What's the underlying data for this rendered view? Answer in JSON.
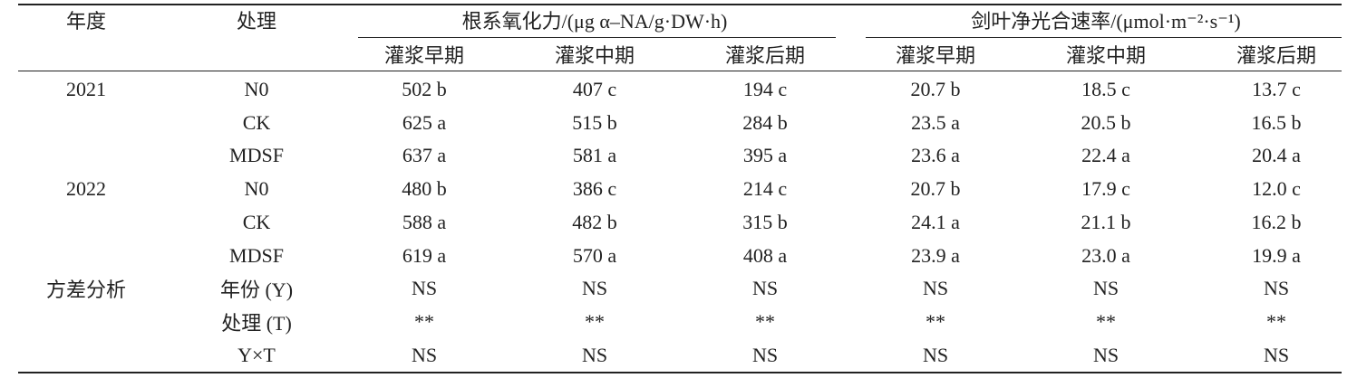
{
  "header": {
    "year": "年度",
    "treatment": "处理",
    "groups": [
      {
        "title": "根系氧化力/(μg α–NA/g·DW·h)",
        "columns": [
          "灌浆早期",
          "灌浆中期",
          "灌浆后期"
        ]
      },
      {
        "title": "剑叶净光合速率/(μmol·m⁻²·s⁻¹)",
        "columns": [
          "灌浆早期",
          "灌浆中期",
          "灌浆后期"
        ]
      }
    ]
  },
  "rows": [
    {
      "year": "2021",
      "treatment": "N0",
      "values": [
        "502 b",
        "407 c",
        "194 c",
        "20.7 b",
        "18.5 c",
        "13.7 c"
      ]
    },
    {
      "treatment": "CK",
      "values": [
        "625 a",
        "515 b",
        "284 b",
        "23.5 a",
        "20.5 b",
        "16.5 b"
      ]
    },
    {
      "treatment": "MDSF",
      "values": [
        "637 a",
        "581 a",
        "395 a",
        "23.6 a",
        "22.4 a",
        "20.4 a"
      ]
    },
    {
      "year": "2022",
      "treatment": "N0",
      "values": [
        "480 b",
        "386 c",
        "214 c",
        "20.7 b",
        "17.9 c",
        "12.0 c"
      ]
    },
    {
      "treatment": "CK",
      "values": [
        "588 a",
        "482 b",
        "315 b",
        "24.1 a",
        "21.1 b",
        "16.2 b"
      ]
    },
    {
      "treatment": "MDSF",
      "values": [
        "619 a",
        "570 a",
        "408 a",
        "23.9 a",
        "23.0 a",
        "19.9 a"
      ]
    },
    {
      "year": "方差分析",
      "treatment": "年份 (Y)",
      "values": [
        "NS",
        "NS",
        "NS",
        "NS",
        "NS",
        "NS"
      ]
    },
    {
      "treatment": "处理 (T)",
      "values": [
        "**",
        "**",
        "**",
        "**",
        "**",
        "**"
      ]
    },
    {
      "treatment": "Y×T",
      "values": [
        "NS",
        "NS",
        "NS",
        "NS",
        "NS",
        "NS"
      ]
    }
  ]
}
